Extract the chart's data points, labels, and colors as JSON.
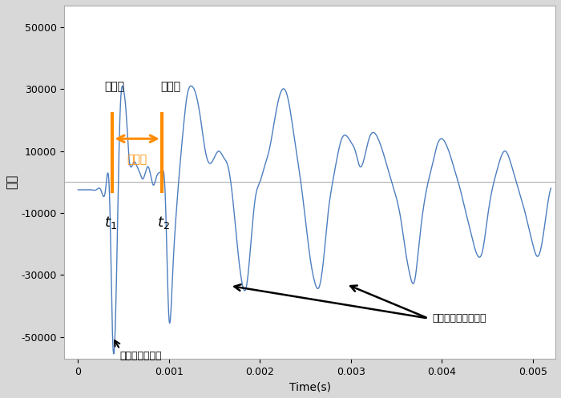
{
  "title": "",
  "xlabel": "Time(s)",
  "ylabel": "速度",
  "xlim": [
    -0.00015,
    0.00525
  ],
  "ylim": [
    -57000,
    57000
  ],
  "yticks": [
    -50000,
    -30000,
    -10000,
    10000,
    30000,
    50000
  ],
  "xticks": [
    0,
    0.001,
    0.002,
    0.003,
    0.004,
    0.005
  ],
  "line_color": "#4d7ebf",
  "bg_color": "#ffffff",
  "fig_bg": "#d8d8d8",
  "t1": 0.00038,
  "t2": 0.00092,
  "orange_color": "#FF8C00",
  "wave1_label": "第１波",
  "wave2_label": "第２波",
  "jikan_label": "時間差",
  "peak1_label": "打撃力のピーク",
  "peak2_label": "先端反射波のピーク",
  "waveform_x": [
    0.0,
    5e-05,
    0.0001,
    0.00015,
    0.0002,
    0.00025,
    0.0003,
    0.00035,
    0.00038,
    0.00042,
    0.00046,
    0.0005,
    0.00053,
    0.00056,
    0.00059,
    0.00062,
    0.00065,
    0.00068,
    0.00071,
    0.00074,
    0.00077,
    0.0008,
    0.00083,
    0.00086,
    0.00089,
    0.00092,
    0.00096,
    0.001,
    0.00104,
    0.00108,
    0.00112,
    0.00116,
    0.0012,
    0.00125,
    0.0013,
    0.00135,
    0.0014,
    0.00145,
    0.0015,
    0.00155,
    0.0016,
    0.00165,
    0.0017,
    0.00175,
    0.0018,
    0.00185,
    0.0019,
    0.00195,
    0.002,
    0.00205,
    0.0021,
    0.00215,
    0.0022,
    0.00225,
    0.0023,
    0.00235,
    0.0024,
    0.00245,
    0.0025,
    0.00255,
    0.0026,
    0.00265,
    0.0027,
    0.00275,
    0.0028,
    0.00285,
    0.0029,
    0.00295,
    0.003,
    0.00305,
    0.0031,
    0.00315,
    0.0032,
    0.00325,
    0.0033,
    0.00335,
    0.0034,
    0.00345,
    0.0035,
    0.00355,
    0.0036,
    0.00365,
    0.0037,
    0.00375,
    0.0038,
    0.00385,
    0.0039,
    0.00395,
    0.004,
    0.00405,
    0.0041,
    0.00415,
    0.0042,
    0.00425,
    0.0043,
    0.00435,
    0.0044,
    0.00445,
    0.0045,
    0.00455,
    0.0046,
    0.00465,
    0.0047,
    0.00475,
    0.0048,
    0.00485,
    0.0049,
    0.00495,
    0.005,
    0.00505,
    0.0051,
    0.00515,
    0.0052
  ],
  "waveform_y": [
    -2500,
    -2500,
    -2500,
    -2500,
    -2500,
    -2500,
    -3000,
    -8000,
    -50000,
    -35000,
    20000,
    30000,
    22000,
    8000,
    5000,
    6500,
    5000,
    3000,
    1000,
    3000,
    5000,
    2000,
    -1000,
    1500,
    3000,
    3500,
    -5000,
    -44000,
    -30000,
    -10000,
    5000,
    18000,
    28000,
    31000,
    28000,
    20000,
    10000,
    6000,
    8000,
    10000,
    8000,
    5000,
    -5000,
    -20000,
    -32000,
    -34000,
    -20000,
    -5000,
    0,
    5000,
    10000,
    18000,
    26000,
    30000,
    28000,
    20000,
    10000,
    0,
    -12000,
    -24000,
    -32000,
    -34000,
    -25000,
    -10000,
    0,
    8000,
    14000,
    15000,
    13000,
    10000,
    5000,
    8000,
    14000,
    16000,
    14000,
    10000,
    5000,
    0,
    -5000,
    -12000,
    -22000,
    -30000,
    -32000,
    -20000,
    -8000,
    0,
    6000,
    12000,
    14000,
    12000,
    8000,
    3000,
    -2000,
    -8000,
    -14000,
    -20000,
    -24000,
    -22000,
    -12000,
    -3000,
    3000,
    8000,
    10000,
    7000,
    2000,
    -3000,
    -8000,
    -14000,
    -20000,
    -24000,
    -20000,
    -10000,
    -2000
  ]
}
